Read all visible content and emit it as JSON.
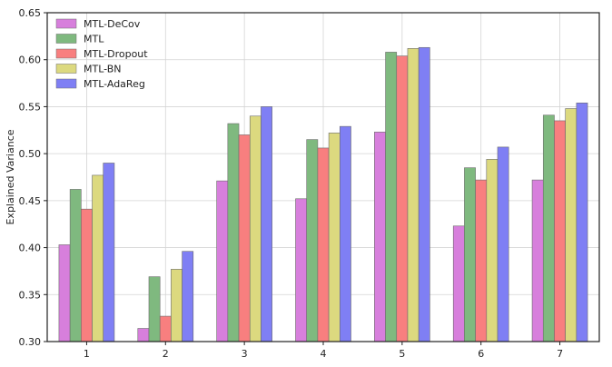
{
  "chart_data": {
    "type": "bar",
    "title": "",
    "xlabel": "",
    "ylabel": "Explained Variance",
    "categories": [
      "1",
      "2",
      "3",
      "4",
      "5",
      "6",
      "7"
    ],
    "ylim": [
      0.3,
      0.65
    ],
    "yticks": [
      "0.30",
      "0.35",
      "0.40",
      "0.45",
      "0.50",
      "0.55",
      "0.60",
      "0.65"
    ],
    "grid": true,
    "legend_position": "top-left",
    "series": [
      {
        "name": "MTL-DeCov",
        "color": "#d77fdc",
        "values": [
          0.403,
          0.314,
          0.471,
          0.452,
          0.523,
          0.423,
          0.472
        ]
      },
      {
        "name": "MTL",
        "color": "#7fb97f",
        "values": [
          0.462,
          0.369,
          0.532,
          0.515,
          0.608,
          0.485,
          0.541
        ]
      },
      {
        "name": "MTL-Dropout",
        "color": "#f87f7f",
        "values": [
          0.441,
          0.327,
          0.52,
          0.506,
          0.604,
          0.472,
          0.535
        ]
      },
      {
        "name": "MTL-BN",
        "color": "#dcd97f",
        "values": [
          0.477,
          0.377,
          0.54,
          0.522,
          0.612,
          0.494,
          0.548
        ]
      },
      {
        "name": "MTL-AdaReg",
        "color": "#7f7ff4",
        "values": [
          0.49,
          0.396,
          0.55,
          0.529,
          0.613,
          0.507,
          0.554
        ]
      }
    ]
  }
}
